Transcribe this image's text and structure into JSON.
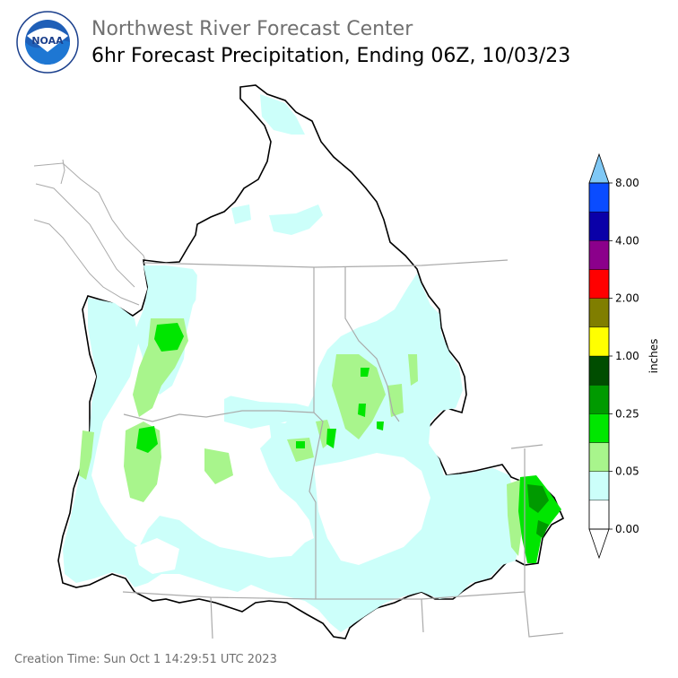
{
  "header": {
    "agency_title": "Northwest River Forecast Center",
    "product_title": "6hr Forecast Precipitation, Ending 06Z, 10/03/23"
  },
  "logo": {
    "name": "noaa-logo",
    "text": "NOAA",
    "ring_text": "NATIONAL OCEANIC AND ATMOSPHERIC ADMINISTRATION · U.S. DEPARTMENT OF COMMERCE"
  },
  "legend": {
    "unit_label": "inches",
    "tick_labels": [
      "0.00",
      "0.05",
      "0.25",
      "1.00",
      "2.00",
      "4.00",
      "8.00"
    ],
    "colors": [
      "#ffffff",
      "#ccfffa",
      "#a8f58c",
      "#00e600",
      "#009a00",
      "#004d00",
      "#ffff00",
      "#807e00",
      "#ff0000",
      "#8b008b",
      "#0a00a8",
      "#0a4cff",
      "#7fc8f5"
    ]
  },
  "map": {
    "basin_outline_color": "#000000",
    "state_border_color": "#aaaaaa",
    "precip_colors": {
      "trace": "#ccfffa",
      "light": "#a8f58c",
      "moderate": "#00e600",
      "heavy": "#009a00",
      "very_heavy": "#004d00"
    }
  },
  "footer": {
    "creation_time": "Creation Time: Sun Oct 1 14:29:51 UTC 2023"
  }
}
